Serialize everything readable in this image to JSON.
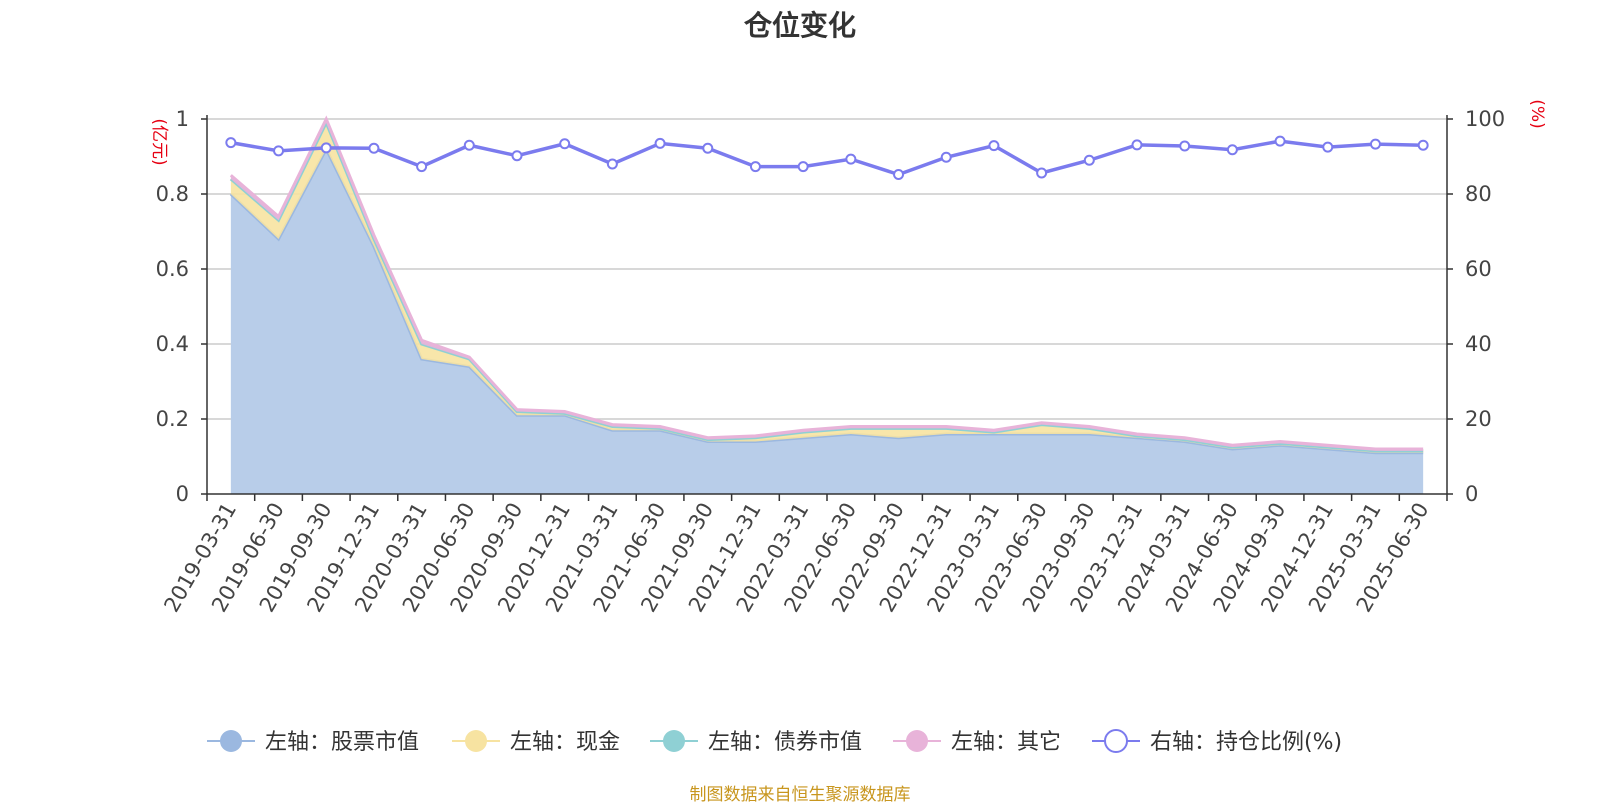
{
  "title": "仓位变化",
  "source_note": "制图数据来自恒生聚源数据库",
  "left_unit": "(亿元)",
  "right_unit": "(%)",
  "colors": {
    "stock": "#9bb8e0",
    "stock_fill": "#b8cde9",
    "cash": "#f7e3a1",
    "bond": "#8fd0d4",
    "other": "#e8b3d9",
    "ratio": "#7b7bee",
    "axis_unit": "#e60012",
    "grid": "#cccccc",
    "axis": "#333333"
  },
  "chart_data": {
    "type": "area",
    "title": "仓位变化",
    "categories": [
      "2019-03-31",
      "2019-06-30",
      "2019-09-30",
      "2019-12-31",
      "2020-03-31",
      "2020-06-30",
      "2020-09-30",
      "2020-12-31",
      "2021-03-31",
      "2021-06-30",
      "2021-09-30",
      "2021-12-31",
      "2022-03-31",
      "2022-06-30",
      "2022-09-30",
      "2022-12-31",
      "2023-03-31",
      "2023-06-30",
      "2023-09-30",
      "2023-12-31",
      "2024-03-31",
      "2024-06-30",
      "2024-09-30",
      "2024-12-31",
      "2025-03-31",
      "2025-06-30"
    ],
    "left_axis": {
      "min": 0,
      "max": 1,
      "ticks": [
        "0",
        "0.2",
        "0.4",
        "0.6",
        "0.8",
        "1"
      ]
    },
    "right_axis": {
      "min": 0,
      "max": 100,
      "ticks": [
        "0",
        "20",
        "40",
        "60",
        "80",
        "100"
      ]
    },
    "grid": true,
    "legend_position": "bottom",
    "series": [
      {
        "name": "左轴：股票市值",
        "key": "stock",
        "axis": "left",
        "stacked": true,
        "values": [
          0.8,
          0.68,
          0.92,
          0.66,
          0.36,
          0.34,
          0.21,
          0.21,
          0.17,
          0.17,
          0.14,
          0.14,
          0.15,
          0.16,
          0.15,
          0.16,
          0.16,
          0.16,
          0.16,
          0.15,
          0.14,
          0.12,
          0.13,
          0.12,
          0.11,
          0.11
        ]
      },
      {
        "name": "左轴：现金",
        "key": "cash",
        "axis": "left",
        "stacked": true,
        "values": [
          0.04,
          0.05,
          0.07,
          0.02,
          0.04,
          0.02,
          0.01,
          0.005,
          0.01,
          0.005,
          0.005,
          0.01,
          0.015,
          0.015,
          0.025,
          0.015,
          0.005,
          0.025,
          0.015,
          0.005,
          0.005,
          0.005,
          0.005,
          0.005,
          0.005,
          0.005
        ]
      },
      {
        "name": "左轴：债券市值",
        "key": "bond",
        "axis": "left",
        "stacked": true,
        "values": [
          0,
          0,
          0,
          0,
          0,
          0,
          0,
          0,
          0,
          0,
          0,
          0,
          0,
          0,
          0,
          0,
          0,
          0,
          0,
          0,
          0,
          0,
          0,
          0,
          0,
          0
        ]
      },
      {
        "name": "左轴：其它",
        "key": "other",
        "axis": "left",
        "stacked": true,
        "values": [
          0.01,
          0.01,
          0.01,
          0.01,
          0.01,
          0.005,
          0.005,
          0.005,
          0.005,
          0.005,
          0.005,
          0.005,
          0.005,
          0.005,
          0.005,
          0.005,
          0.005,
          0.005,
          0.005,
          0.005,
          0.005,
          0.005,
          0.005,
          0.005,
          0.005,
          0.005
        ]
      },
      {
        "name": "右轴：持仓比例(%)",
        "key": "ratio",
        "axis": "right",
        "type": "line",
        "values": [
          93.7,
          91.5,
          92.3,
          92.2,
          87.3,
          93.0,
          90.2,
          93.4,
          88.0,
          93.5,
          92.2,
          87.3,
          87.3,
          89.3,
          85.2,
          89.8,
          92.9,
          85.6,
          89.0,
          93.1,
          92.8,
          91.8,
          94.1,
          92.5,
          93.3,
          93.0
        ]
      }
    ]
  }
}
